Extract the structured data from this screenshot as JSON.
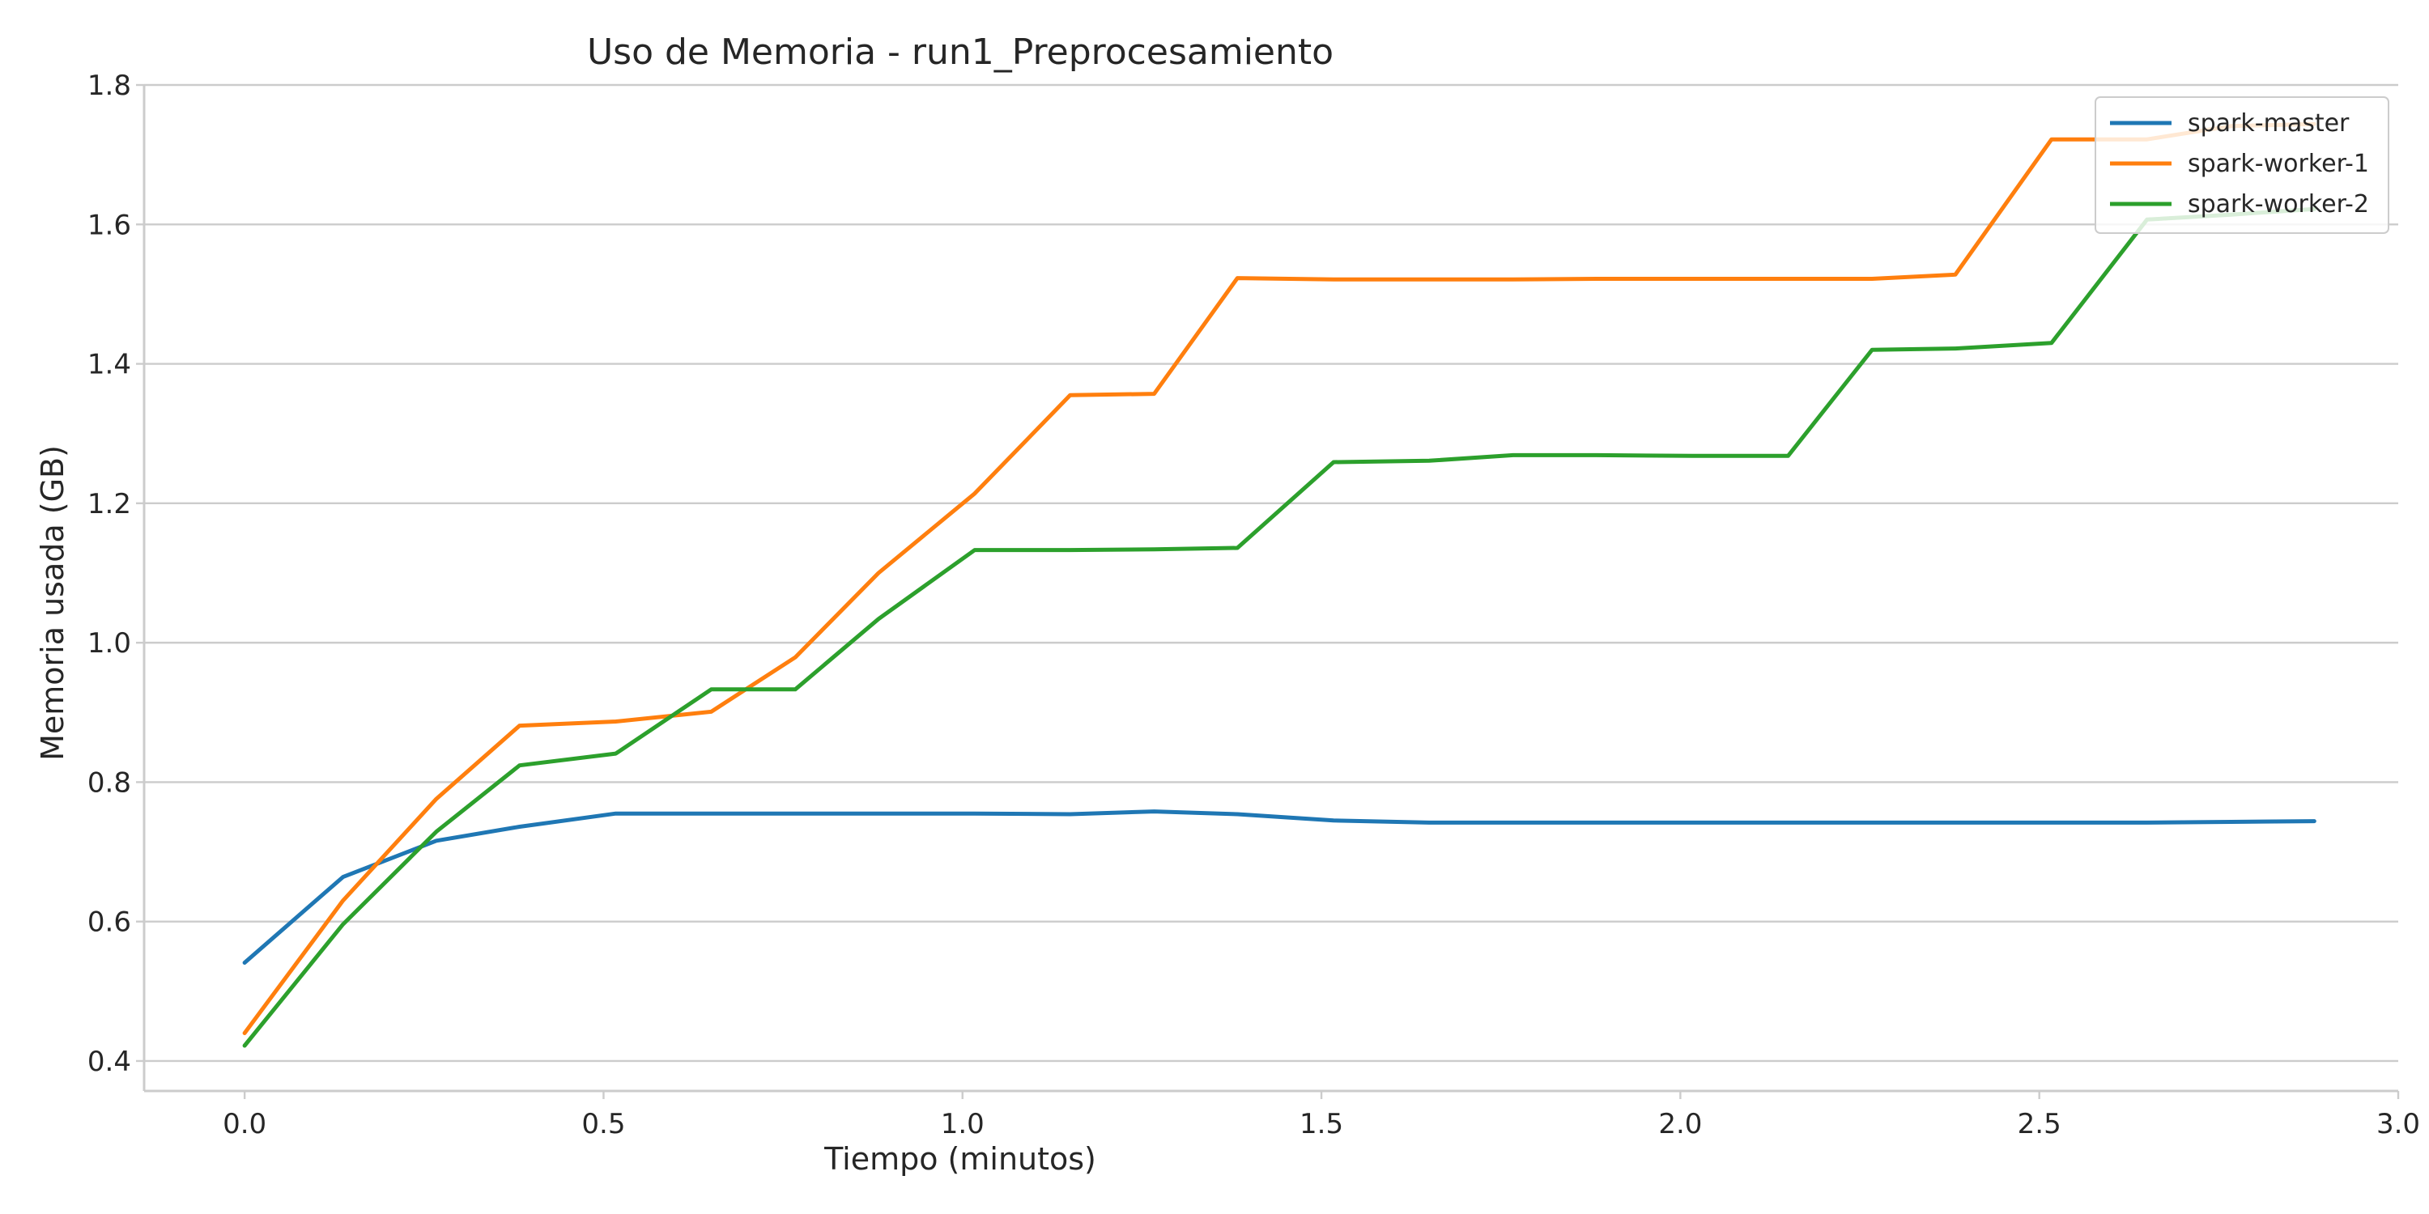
{
  "chart_data": {
    "type": "line",
    "title": "Uso de Memoria - run1_Preprocesamiento",
    "xlabel": "Tiempo (minutos)",
    "ylabel": "Memoria usada (GB)",
    "xlim": [
      -0.14,
      3.0
    ],
    "ylim": [
      0.357,
      1.8
    ],
    "xticks": [
      0.0,
      0.5,
      1.0,
      1.5,
      2.0,
      2.5,
      3.0
    ],
    "xtick_labels": [
      "0.0",
      "0.5",
      "1.0",
      "1.5",
      "2.0",
      "2.5",
      "3.0"
    ],
    "yticks": [
      0.4,
      0.6,
      0.8,
      1.0,
      1.2,
      1.4,
      1.6,
      1.8
    ],
    "ytick_labels": [
      "0.4",
      "0.6",
      "0.8",
      "1.0",
      "1.2",
      "1.4",
      "1.6",
      "1.8"
    ],
    "grid": "horizontal",
    "legend_position": "top-right",
    "x": [
      0.0,
      0.137,
      0.267,
      0.383,
      0.517,
      0.65,
      0.767,
      0.883,
      1.017,
      1.15,
      1.267,
      1.383,
      1.517,
      1.65,
      1.767,
      1.883,
      2.017,
      2.15,
      2.267,
      2.383,
      2.517,
      2.65,
      2.767,
      2.883
    ],
    "series": [
      {
        "name": "spark-master",
        "color": "#1f77b4",
        "values": [
          0.541,
          0.664,
          0.716,
          0.736,
          0.755,
          0.755,
          0.755,
          0.755,
          0.755,
          0.754,
          0.758,
          0.754,
          0.745,
          0.742,
          0.742,
          0.742,
          0.742,
          0.742,
          0.742,
          0.742,
          0.742,
          0.742,
          0.743,
          0.744
        ]
      },
      {
        "name": "spark-worker-1",
        "color": "#ff7f0e",
        "values": [
          0.44,
          0.63,
          0.776,
          0.881,
          0.887,
          0.901,
          0.979,
          1.1,
          1.214,
          1.355,
          1.357,
          1.523,
          1.521,
          1.521,
          1.521,
          1.522,
          1.522,
          1.522,
          1.522,
          1.528,
          1.722,
          1.722,
          1.741,
          1.744
        ]
      },
      {
        "name": "spark-worker-2",
        "color": "#2ca02c",
        "values": [
          0.422,
          0.596,
          0.729,
          0.824,
          0.841,
          0.933,
          0.933,
          1.034,
          1.133,
          1.133,
          1.134,
          1.136,
          1.259,
          1.261,
          1.269,
          1.269,
          1.268,
          1.268,
          1.42,
          1.422,
          1.43,
          1.607,
          1.614,
          1.622
        ]
      }
    ]
  }
}
